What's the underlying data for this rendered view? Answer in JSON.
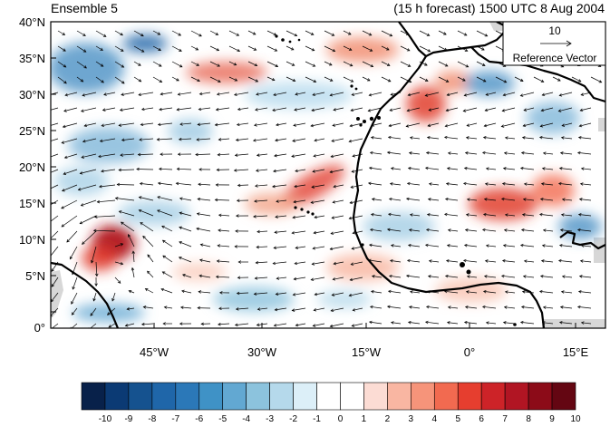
{
  "header": {
    "left_title": "Ensemble 5",
    "right_title": "(15 h forecast) 1500 UTC 8 Aug 2004"
  },
  "map": {
    "lat_labels": [
      "40°N",
      "35°N",
      "30°N",
      "25°N",
      "20°N",
      "15°N",
      "10°N",
      "5°N",
      "0°"
    ],
    "lon_labels": [
      "45°W",
      "30°W",
      "15°W",
      "0°",
      "15°E"
    ],
    "land_color": "#d7d7d7",
    "coast_color": "#000000"
  },
  "reference_vector": {
    "magnitude_label": "10",
    "caption": "Reference Vector"
  },
  "colorbar": {
    "labels": [
      "-10",
      "-9",
      "-8",
      "-7",
      "-6",
      "-5",
      "-4",
      "-3",
      "-2",
      "-1",
      "0",
      "1",
      "2",
      "3",
      "4",
      "5",
      "6",
      "7",
      "8",
      "9",
      "10"
    ],
    "colors": [
      "#08214a",
      "#0b3a74",
      "#15528f",
      "#1f66a9",
      "#2b78b8",
      "#3f92c6",
      "#62a8d2",
      "#8cc3dd",
      "#b5d9eb",
      "#dceff8",
      "#ffffff",
      "#ffffff",
      "#fcdcd4",
      "#f9b6a2",
      "#f6947a",
      "#f26a50",
      "#e63e2f",
      "#cd2328",
      "#b11523",
      "#8c0b18",
      "#640612"
    ]
  }
}
